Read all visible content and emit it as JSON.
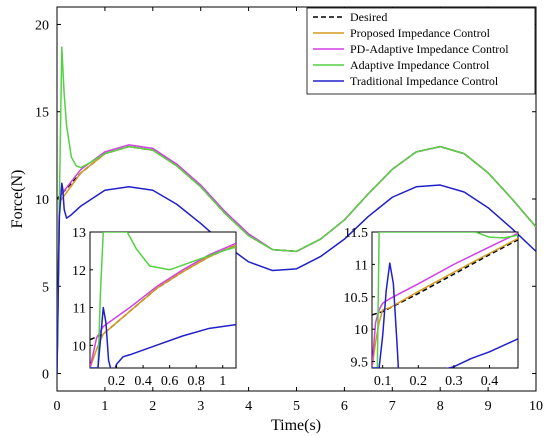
{
  "chart_data": {
    "type": "line",
    "title": "",
    "xlabel": "Time(s)",
    "ylabel": "Force(N)",
    "xlim": [
      0,
      10
    ],
    "ylim": [
      -1,
      21
    ],
    "xticks": [
      0,
      1,
      2,
      3,
      4,
      5,
      6,
      7,
      8,
      9,
      10
    ],
    "yticks": [
      0,
      5,
      10,
      15,
      20
    ],
    "grid": false,
    "legend_position": "top-right",
    "colors": {
      "Desired": "#000000",
      "Proposed Impedance Control": "#D49A1E",
      "PD-Adaptive Impedance Control": "#D23FE6",
      "Adaptive Impedance Control": "#55D144",
      "Traditional Impedance Control": "#1F20C8"
    },
    "series": [
      {
        "name": "Desired",
        "style": "dashed",
        "x": [
          0,
          0.5,
          1,
          1.5,
          2,
          2.5,
          3,
          3.5,
          4,
          4.5,
          5,
          5.5,
          6,
          6.5,
          7,
          7.5,
          8,
          8.5,
          9,
          9.5,
          10
        ],
        "y": [
          10.0,
          11.5,
          12.6,
          13.0,
          12.8,
          11.9,
          10.7,
          9.2,
          7.9,
          7.1,
          7.0,
          7.7,
          8.8,
          10.3,
          11.7,
          12.7,
          13.0,
          12.6,
          11.5,
          10.0,
          8.4
        ]
      },
      {
        "name": "Proposed Impedance Control",
        "style": "solid",
        "x": [
          0,
          0.05,
          0.1,
          0.5,
          1,
          1.5,
          2,
          2.5,
          3,
          3.5,
          4,
          4.5,
          5,
          5.5,
          6,
          6.5,
          7,
          7.5,
          8,
          8.5,
          9,
          9.5,
          10
        ],
        "y": [
          0,
          9.8,
          10.0,
          11.5,
          12.6,
          13.0,
          12.8,
          11.9,
          10.7,
          9.2,
          7.9,
          7.1,
          7.0,
          7.7,
          8.8,
          10.3,
          11.7,
          12.7,
          13.0,
          12.6,
          11.5,
          10.0,
          8.4
        ]
      },
      {
        "name": "PD-Adaptive Impedance Control",
        "style": "solid",
        "x": [
          0,
          0.05,
          0.1,
          0.5,
          1,
          1.5,
          2,
          2.5,
          3,
          3.5,
          4,
          4.5,
          5,
          5.5,
          6,
          6.5,
          7,
          7.5,
          8,
          8.5,
          9,
          9.5,
          10
        ],
        "y": [
          0,
          10.1,
          10.3,
          11.7,
          12.7,
          13.1,
          12.9,
          12.0,
          10.8,
          9.3,
          8.0,
          7.1,
          7.0,
          7.7,
          8.8,
          10.3,
          11.7,
          12.7,
          13.0,
          12.6,
          11.5,
          10.0,
          8.4
        ]
      },
      {
        "name": "Adaptive Impedance Control",
        "style": "solid",
        "x": [
          0,
          0.05,
          0.1,
          0.15,
          0.2,
          0.3,
          0.4,
          0.5,
          0.7,
          1,
          1.5,
          2,
          2.5,
          3,
          3.5,
          4,
          4.5,
          5,
          5.5,
          6,
          6.5,
          7,
          7.5,
          8,
          8.5,
          9,
          9.5,
          10
        ],
        "y": [
          0,
          10.0,
          18.7,
          16.0,
          14.2,
          12.4,
          11.9,
          11.8,
          12.1,
          12.6,
          13.0,
          12.8,
          11.9,
          10.7,
          9.2,
          7.9,
          7.1,
          7.0,
          7.7,
          8.8,
          10.3,
          11.7,
          12.7,
          13.0,
          12.6,
          11.5,
          10.0,
          8.4
        ]
      },
      {
        "name": "Traditional Impedance Control",
        "style": "solid",
        "x": [
          0,
          0.05,
          0.1,
          0.12,
          0.15,
          0.2,
          0.3,
          0.5,
          1,
          1.5,
          2,
          2.5,
          3,
          3.5,
          4,
          4.5,
          5,
          5.5,
          6,
          6.5,
          7,
          7.5,
          8,
          8.5,
          9,
          9.5,
          10
        ],
        "y": [
          0,
          9.0,
          10.9,
          10.6,
          9.4,
          8.9,
          9.1,
          9.6,
          10.5,
          10.7,
          10.5,
          9.7,
          8.6,
          7.4,
          6.4,
          5.9,
          6.0,
          6.7,
          7.7,
          9.0,
          10.1,
          10.7,
          10.8,
          10.4,
          9.5,
          8.3,
          7.0
        ]
      }
    ],
    "insets": [
      {
        "name": "inset-left",
        "xlim": [
          0,
          1.1
        ],
        "ylim": [
          9.4,
          13.0
        ],
        "xticks": [
          0.2,
          0.4,
          0.6,
          0.8,
          1
        ],
        "xtick_labels": [
          "0.2",
          "0.4",
          "0.6",
          "0.8",
          "1"
        ],
        "yticks": [
          10,
          11,
          12,
          13
        ],
        "series": [
          {
            "name": "Desired",
            "x": [
              0,
              0.1,
              0.3,
              0.5,
              0.7,
              0.9,
              1.1
            ],
            "y": [
              10.15,
              10.3,
              10.9,
              11.5,
              11.95,
              12.35,
              12.65
            ]
          },
          {
            "name": "Proposed Impedance Control",
            "x": [
              0,
              0.05,
              0.1,
              0.3,
              0.5,
              0.7,
              0.9,
              1.1
            ],
            "y": [
              9.4,
              9.9,
              10.3,
              10.9,
              11.5,
              11.95,
              12.35,
              12.65
            ]
          },
          {
            "name": "PD-Adaptive Impedance Control",
            "x": [
              0,
              0.05,
              0.1,
              0.3,
              0.5,
              0.7,
              0.9,
              1.1
            ],
            "y": [
              9.4,
              10.2,
              10.5,
              11.0,
              11.55,
              12.0,
              12.4,
              12.7
            ]
          },
          {
            "name": "Adaptive Impedance Control",
            "x": [
              0,
              0.06,
              0.08,
              0.1,
              0.12,
              0.15,
              0.2,
              0.28,
              0.35,
              0.45,
              0.6,
              0.8,
              1.0,
              1.1
            ],
            "y": [
              9.4,
              9.4,
              11.5,
              13.0,
              13.0,
              13.0,
              13.0,
              13.0,
              12.55,
              12.1,
              12.0,
              12.25,
              12.5,
              12.6
            ]
          },
          {
            "name": "Traditional Impedance Control",
            "x": [
              0,
              0.06,
              0.08,
              0.1,
              0.12,
              0.14,
              0.17,
              0.2,
              0.25,
              0.3,
              0.5,
              0.7,
              0.9,
              1.1
            ],
            "y": [
              9.4,
              9.4,
              10.2,
              11.0,
              10.6,
              9.6,
              9.2,
              9.5,
              9.7,
              9.75,
              10.0,
              10.25,
              10.45,
              10.55
            ]
          }
        ]
      },
      {
        "name": "inset-right",
        "xlim": [
          0.07,
          0.48
        ],
        "ylim": [
          9.4,
          11.5
        ],
        "xticks": [
          0.1,
          0.2,
          0.3,
          0.4
        ],
        "xtick_labels": [
          "0.1",
          "0.2",
          "0.3",
          "0.4"
        ],
        "yticks": [
          9.5,
          10,
          10.5,
          11,
          11.5
        ],
        "series": [
          {
            "name": "Desired",
            "x": [
              0.07,
              0.1,
              0.2,
              0.3,
              0.4,
              0.48
            ],
            "y": [
              10.22,
              10.27,
              10.55,
              10.85,
              11.15,
              11.38
            ]
          },
          {
            "name": "Proposed Impedance Control",
            "x": [
              0.07,
              0.08,
              0.09,
              0.1,
              0.12,
              0.2,
              0.3,
              0.4,
              0.48
            ],
            "y": [
              9.4,
              9.8,
              10.1,
              10.3,
              10.33,
              10.58,
              10.88,
              11.17,
              11.4
            ]
          },
          {
            "name": "PD-Adaptive Impedance Control",
            "x": [
              0.07,
              0.08,
              0.09,
              0.1,
              0.12,
              0.2,
              0.3,
              0.4,
              0.48
            ],
            "y": [
              9.4,
              10.1,
              10.3,
              10.4,
              10.47,
              10.7,
              11.0,
              11.27,
              11.48
            ]
          },
          {
            "name": "Adaptive Impedance Control",
            "x": [
              0.07,
              0.085,
              0.09,
              0.1,
              0.2,
              0.3,
              0.36,
              0.4,
              0.44,
              0.48
            ],
            "y": [
              9.4,
              9.4,
              11.5,
              11.5,
              11.5,
              11.5,
              11.5,
              11.42,
              11.41,
              11.45
            ]
          },
          {
            "name": "Traditional Impedance Control",
            "x": [
              0.07,
              0.09,
              0.1,
              0.11,
              0.12,
              0.13,
              0.14,
              0.145,
              0.2,
              0.25,
              0.3,
              0.35,
              0.4,
              0.48
            ],
            "y": [
              9.4,
              9.4,
              9.9,
              10.6,
              11.02,
              10.7,
              9.8,
              9.3,
              9.3,
              9.35,
              9.42,
              9.55,
              9.65,
              9.85
            ]
          }
        ]
      }
    ]
  }
}
